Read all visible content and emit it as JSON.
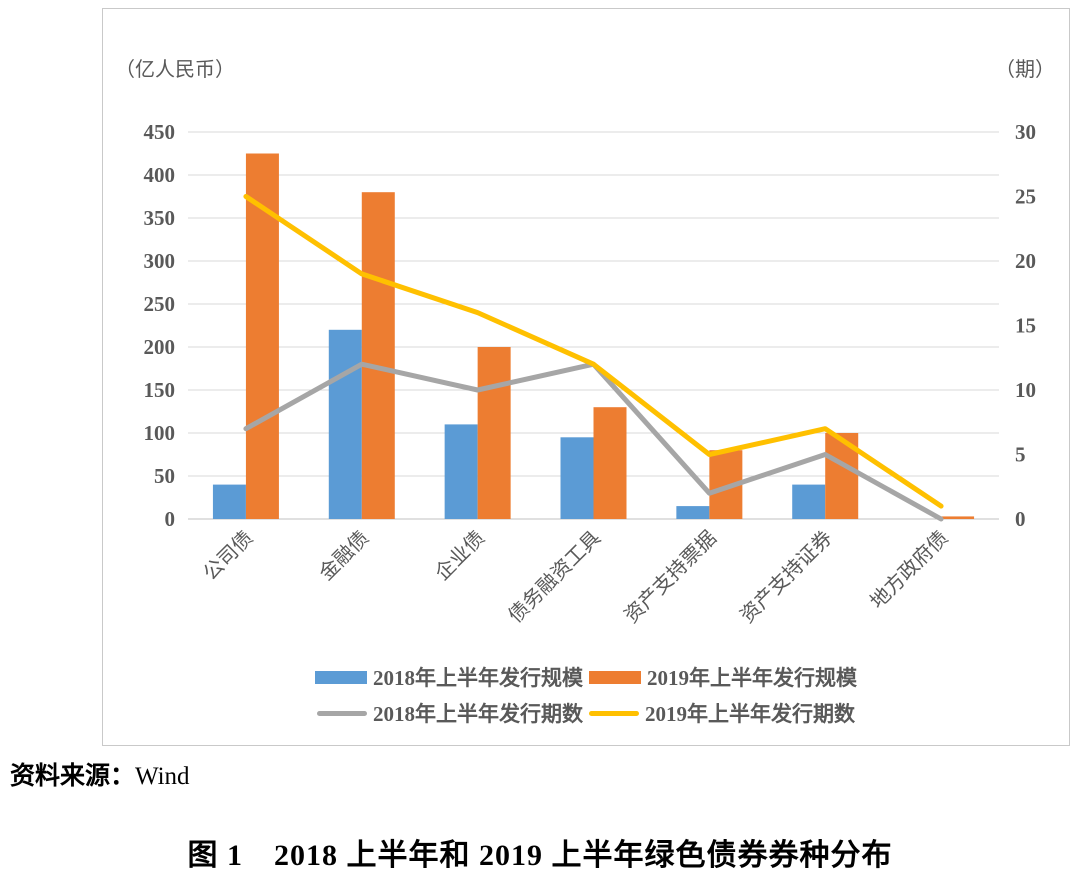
{
  "chart_data": {
    "type": "bar",
    "subtype": "bar-line-combo",
    "categories": [
      "公司债",
      "金融债",
      "企业债",
      "债务融资工具",
      "资产支持票据",
      "资产支持证券",
      "地方政府债"
    ],
    "series": [
      {
        "name": "2018年上半年发行规模",
        "type": "bar",
        "axis": "left",
        "color": "#5B9BD5",
        "values": [
          40,
          220,
          110,
          95,
          15,
          40,
          0
        ]
      },
      {
        "name": "2019年上半年发行规模",
        "type": "bar",
        "axis": "left",
        "color": "#ED7D31",
        "values": [
          425,
          380,
          200,
          130,
          80,
          100,
          3
        ]
      },
      {
        "name": "2018年上半年发行期数",
        "type": "line",
        "axis": "right",
        "color": "#A6A6A6",
        "values": [
          7,
          12,
          10,
          12,
          2,
          5,
          0
        ]
      },
      {
        "name": "2019年上半年发行期数",
        "type": "line",
        "axis": "right",
        "color": "#FFC000",
        "values": [
          25,
          19,
          16,
          12,
          5,
          7,
          1
        ]
      }
    ],
    "left_axis": {
      "label": "（亿人民币）",
      "min": 0,
      "max": 450,
      "step": 50,
      "ticks": [
        450,
        400,
        350,
        300,
        250,
        200,
        150,
        100,
        50,
        0
      ]
    },
    "right_axis": {
      "label": "（期）",
      "min": 0,
      "max": 30,
      "step": 5,
      "ticks": [
        30,
        25,
        20,
        15,
        10,
        5,
        0
      ]
    },
    "grid": true,
    "legend_position": "bottom"
  },
  "source_note": {
    "label": "资料来源：",
    "value": "Wind"
  },
  "caption": "图 1　2018 上半年和 2019 上半年绿色债券券种分布"
}
